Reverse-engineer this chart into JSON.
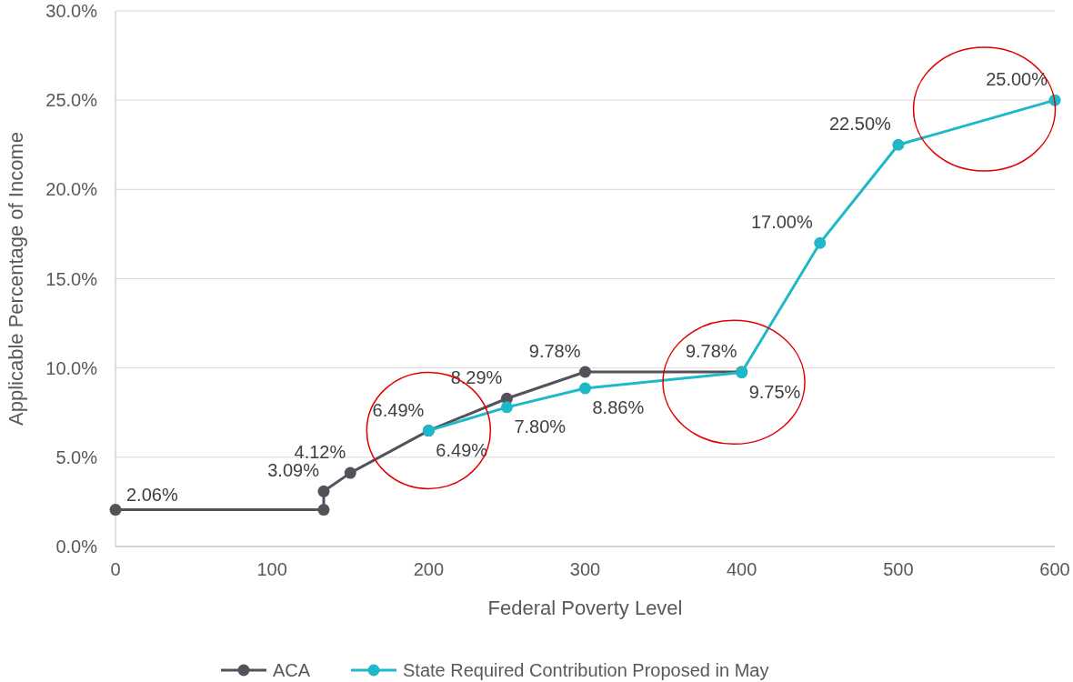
{
  "chart_data": {
    "type": "line",
    "xlabel": "Federal Poverty Level",
    "ylabel": "Applicable Percentage of Income",
    "xlim": [
      0,
      600
    ],
    "xticks": [
      0,
      100,
      200,
      300,
      400,
      500,
      600
    ],
    "ylim": [
      0,
      30
    ],
    "yticks": [
      {
        "value": 0,
        "label": "0.0%"
      },
      {
        "value": 5,
        "label": "5.0%"
      },
      {
        "value": 10,
        "label": "10.0%"
      },
      {
        "value": 15,
        "label": "15.0%"
      },
      {
        "value": 20,
        "label": "20.0%"
      },
      {
        "value": 25,
        "label": "25.0%"
      },
      {
        "value": 30,
        "label": "30.0%"
      }
    ],
    "grid": "y",
    "legend": "bottom",
    "marker": "circle",
    "line_style": "solid",
    "series": [
      {
        "name": "ACA",
        "color": "#55505a",
        "x": [
          0,
          133,
          133,
          150,
          200,
          250,
          300,
          400
        ],
        "values": [
          2.06,
          2.06,
          3.09,
          4.12,
          6.49,
          8.29,
          9.78,
          9.78
        ],
        "value_labels": [
          "2.06%",
          null,
          "3.09%",
          "4.12%",
          "6.49%",
          "8.29%",
          "9.78%",
          "9.78%"
        ]
      },
      {
        "name": "State Required Contribution Proposed in May",
        "color": "#1fb8c8",
        "x": [
          200,
          250,
          300,
          400,
          450,
          500,
          600
        ],
        "values": [
          6.49,
          7.8,
          8.86,
          9.75,
          17,
          22.5,
          25
        ],
        "value_labels": [
          "6.49%",
          "7.80%",
          "8.86%",
          "9.75%",
          "17.00%",
          "22.50%",
          "25.00%"
        ]
      }
    ]
  }
}
